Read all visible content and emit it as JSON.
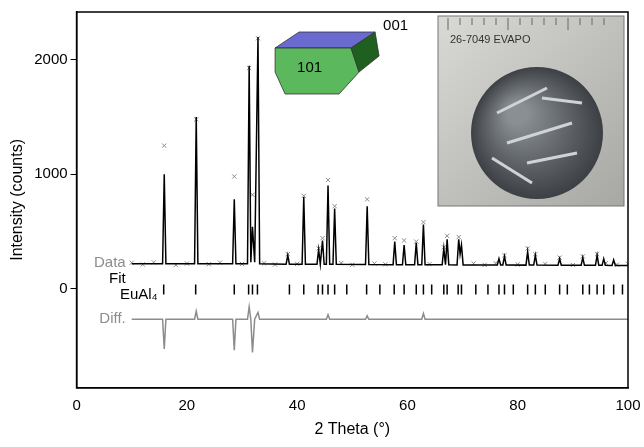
{
  "chart_data": {
    "type": "scatter",
    "xlabel": "2 Theta (°)",
    "ylabel": "Intensity (counts)",
    "xlim": [
      0,
      100
    ],
    "xticks": [
      0,
      20,
      40,
      60,
      80,
      100
    ],
    "ylim": [
      -870,
      2420
    ],
    "yticks": [
      0,
      1000,
      2000
    ],
    "grid": false,
    "annotations": [
      "001",
      "101",
      "26-7049 EVAPO"
    ],
    "series": [
      {
        "name": "Data",
        "type": "scatter",
        "marker": "x",
        "color": "#8c8c8c",
        "x": [
          10,
          12,
          14,
          15.9,
          18,
          20,
          21.7,
          24,
          26,
          28.6,
          30,
          31.3,
          31.9,
          32.9,
          34,
          36,
          38.3,
          40,
          41.2,
          43.9,
          44.6,
          45.6,
          46.8,
          48,
          50,
          52.7,
          54,
          56,
          57.7,
          59.4,
          61.6,
          62.9,
          64,
          66.6,
          67.2,
          69.3,
          72,
          74,
          76,
          77.6,
          80,
          81.8,
          83.2,
          85,
          87.6,
          90,
          91.8,
          94.4,
          96,
          98,
          100
        ],
        "values": [
          225,
          210,
          228,
          1250,
          205,
          218,
          1480,
          212,
          226,
          980,
          214,
          1930,
          820,
          2190,
          220,
          209,
          300,
          215,
          810,
          350,
          440,
          950,
          720,
          222,
          207,
          780,
          218,
          211,
          440,
          420,
          410,
          580,
          213,
          360,
          460,
          450,
          219,
          206,
          221,
          290,
          210,
          350,
          300,
          214,
          270,
          205,
          280,
          300,
          222,
          208,
          215
        ]
      },
      {
        "name": "Fit",
        "type": "line",
        "color": "#000000",
        "x": [
          10,
          15.6,
          15.9,
          16.2,
          21.4,
          21.7,
          22.0,
          28.3,
          28.6,
          28.9,
          31.0,
          31.3,
          31.6,
          31.9,
          32.3,
          32.9,
          33.2,
          38.0,
          38.3,
          38.6,
          40.9,
          41.2,
          41.5,
          43.6,
          43.9,
          44.2,
          44.6,
          44.9,
          45.3,
          45.6,
          45.9,
          46.5,
          46.8,
          47.1,
          52.4,
          52.7,
          53.0,
          57.4,
          57.7,
          58.0,
          59.1,
          59.4,
          59.7,
          61.3,
          61.6,
          61.9,
          62.6,
          62.9,
          63.2,
          66.3,
          66.6,
          66.9,
          67.2,
          67.5,
          69.0,
          69.3,
          69.55,
          69.8,
          70.1,
          76.3,
          76.6,
          76.9,
          77.3,
          77.6,
          77.9,
          81.5,
          81.8,
          82.1,
          82.9,
          83.2,
          83.5,
          87.3,
          87.6,
          87.9,
          91.5,
          91.8,
          92.1,
          94.1,
          94.4,
          94.7,
          95.3,
          95.6,
          95.9,
          97.1,
          97.4,
          97.7,
          100
        ],
        "values": [
          215,
          215,
          1000,
          215,
          215,
          1500,
          215,
          215,
          780,
          215,
          215,
          1950,
          230,
          540,
          230,
          2200,
          215,
          212,
          290,
          212,
          212,
          800,
          212,
          212,
          340,
          212,
          420,
          212,
          212,
          900,
          212,
          212,
          700,
          212,
          210,
          720,
          210,
          208,
          410,
          208,
          208,
          380,
          208,
          208,
          400,
          208,
          208,
          560,
          208,
          207,
          350,
          207,
          430,
          207,
          206,
          430,
          300,
          380,
          206,
          205,
          260,
          205,
          205,
          280,
          205,
          204,
          320,
          204,
          204,
          290,
          204,
          203,
          260,
          203,
          202,
          270,
          202,
          202,
          290,
          202,
          202,
          260,
          202,
          201,
          250,
          201,
          200
        ]
      },
      {
        "name": "EuAl₄",
        "type": "scatter",
        "marker": "|",
        "color": "#000000",
        "x": [
          15.8,
          21.6,
          28.6,
          31.2,
          31.9,
          32.8,
          38.6,
          41.2,
          43.8,
          44.6,
          45.6,
          46.8,
          49.0,
          52.6,
          55.0,
          57.6,
          59.4,
          61.6,
          62.9,
          64.4,
          66.6,
          67.2,
          69.2,
          69.8,
          72.4,
          74.6,
          76.6,
          77.6,
          79.2,
          81.8,
          83.2,
          85.0,
          87.6,
          89.0,
          91.8,
          93.0,
          94.4,
          95.6,
          97.4,
          99.0
        ],
        "values": [
          -10,
          -10,
          -10,
          -10,
          -10,
          -10,
          -10,
          -10,
          -10,
          -10,
          -10,
          -10,
          -10,
          -10,
          -10,
          -10,
          -10,
          -10,
          -10,
          -10,
          -10,
          -10,
          -10,
          -10,
          -10,
          -10,
          -10,
          -10,
          -10,
          -10,
          -10,
          -10,
          -10,
          -10,
          -10,
          -10,
          -10,
          -10,
          -10,
          -10
        ]
      },
      {
        "name": "Diff.",
        "type": "line",
        "color": "#8c8c8c",
        "x": [
          10,
          15.6,
          15.9,
          16.2,
          21.4,
          21.7,
          22.0,
          28.3,
          28.6,
          28.9,
          31.0,
          31.3,
          31.6,
          31.9,
          32.3,
          32.9,
          33.2,
          45.3,
          45.6,
          45.9,
          52.4,
          52.7,
          53.0,
          62.6,
          62.9,
          63.2,
          100
        ],
        "values": [
          -270,
          -270,
          -530,
          -270,
          -270,
          -200,
          -270,
          -270,
          -540,
          -270,
          -270,
          -160,
          -270,
          -560,
          -270,
          -210,
          -270,
          -270,
          -230,
          -270,
          -270,
          -240,
          -270,
          -270,
          -220,
          -270,
          -270
        ]
      }
    ]
  }
}
